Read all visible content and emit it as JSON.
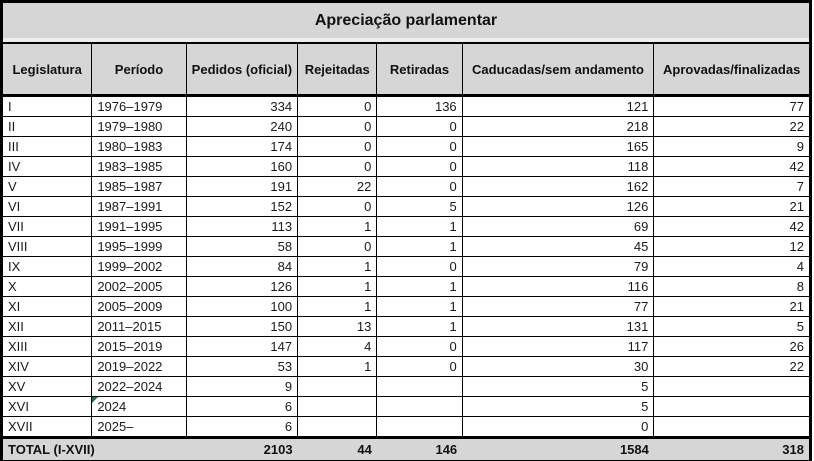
{
  "title": "Apreciação parlamentar",
  "chart_data": {
    "type": "table",
    "title": "Apreciação parlamentar",
    "columns": [
      "Legislatura",
      "Período",
      "Pedidos (oficial)",
      "Rejeitadas",
      "Retiradas",
      "Caducadas/sem andamento",
      "Aprovadas/finalizadas"
    ],
    "rows": [
      {
        "legislatura": "I",
        "periodo": "1976–1979",
        "pedidos": "334",
        "rejeitadas": "0",
        "retiradas": "136",
        "caducadas": "121",
        "aprovadas": "77",
        "note": false
      },
      {
        "legislatura": "II",
        "periodo": "1979–1980",
        "pedidos": "240",
        "rejeitadas": "0",
        "retiradas": "0",
        "caducadas": "218",
        "aprovadas": "22",
        "note": false
      },
      {
        "legislatura": "III",
        "periodo": "1980–1983",
        "pedidos": "174",
        "rejeitadas": "0",
        "retiradas": "0",
        "caducadas": "165",
        "aprovadas": "9",
        "note": false
      },
      {
        "legislatura": "IV",
        "periodo": "1983–1985",
        "pedidos": "160",
        "rejeitadas": "0",
        "retiradas": "0",
        "caducadas": "118",
        "aprovadas": "42",
        "note": false
      },
      {
        "legislatura": "V",
        "periodo": "1985–1987",
        "pedidos": "191",
        "rejeitadas": "22",
        "retiradas": "0",
        "caducadas": "162",
        "aprovadas": "7",
        "note": false
      },
      {
        "legislatura": "VI",
        "periodo": "1987–1991",
        "pedidos": "152",
        "rejeitadas": "0",
        "retiradas": "5",
        "caducadas": "126",
        "aprovadas": "21",
        "note": false
      },
      {
        "legislatura": "VII",
        "periodo": "1991–1995",
        "pedidos": "113",
        "rejeitadas": "1",
        "retiradas": "1",
        "caducadas": "69",
        "aprovadas": "42",
        "note": false
      },
      {
        "legislatura": "VIII",
        "periodo": "1995–1999",
        "pedidos": "58",
        "rejeitadas": "0",
        "retiradas": "1",
        "caducadas": "45",
        "aprovadas": "12",
        "note": false
      },
      {
        "legislatura": "IX",
        "periodo": "1999–2002",
        "pedidos": "84",
        "rejeitadas": "1",
        "retiradas": "0",
        "caducadas": "79",
        "aprovadas": "4",
        "note": false
      },
      {
        "legislatura": "X",
        "periodo": "2002–2005",
        "pedidos": "126",
        "rejeitadas": "1",
        "retiradas": "1",
        "caducadas": "116",
        "aprovadas": "8",
        "note": false
      },
      {
        "legislatura": "XI",
        "periodo": "2005–2009",
        "pedidos": "100",
        "rejeitadas": "1",
        "retiradas": "1",
        "caducadas": "77",
        "aprovadas": "21",
        "note": false
      },
      {
        "legislatura": "XII",
        "periodo": "2011–2015",
        "pedidos": "150",
        "rejeitadas": "13",
        "retiradas": "1",
        "caducadas": "131",
        "aprovadas": "5",
        "note": false
      },
      {
        "legislatura": "XIII",
        "periodo": "2015–2019",
        "pedidos": "147",
        "rejeitadas": "4",
        "retiradas": "0",
        "caducadas": "117",
        "aprovadas": "26",
        "note": false
      },
      {
        "legislatura": "XIV",
        "periodo": "2019–2022",
        "pedidos": "53",
        "rejeitadas": "1",
        "retiradas": "0",
        "caducadas": "30",
        "aprovadas": "22",
        "note": false
      },
      {
        "legislatura": "XV",
        "periodo": "2022–2024",
        "pedidos": "9",
        "rejeitadas": "",
        "retiradas": "",
        "caducadas": "5",
        "aprovadas": "",
        "note": false
      },
      {
        "legislatura": "XVI",
        "periodo": "2024",
        "pedidos": "6",
        "rejeitadas": "",
        "retiradas": "",
        "caducadas": "5",
        "aprovadas": "",
        "note": true
      },
      {
        "legislatura": "XVII",
        "periodo": "2025–",
        "pedidos": "6",
        "rejeitadas": "",
        "retiradas": "",
        "caducadas": "0",
        "aprovadas": "",
        "note": false
      }
    ],
    "total": {
      "label": "TOTAL (I-XVII)",
      "pedidos": "2103",
      "rejeitadas": "44",
      "retiradas": "146",
      "caducadas": "1584",
      "aprovadas": "318"
    },
    "layout_hints": {
      "note_marker": "green corner triangle on the XVI / 2024 period cell",
      "total_row_has_no_vertical_dividers": true
    }
  },
  "colors": {
    "header_bg": "#d6d6d6",
    "total_bg": "#d6d6d6",
    "cell_bg": "#ffffff",
    "grid": "#000000",
    "separator_band": "#ededed",
    "note_marker": "#1e7145"
  }
}
